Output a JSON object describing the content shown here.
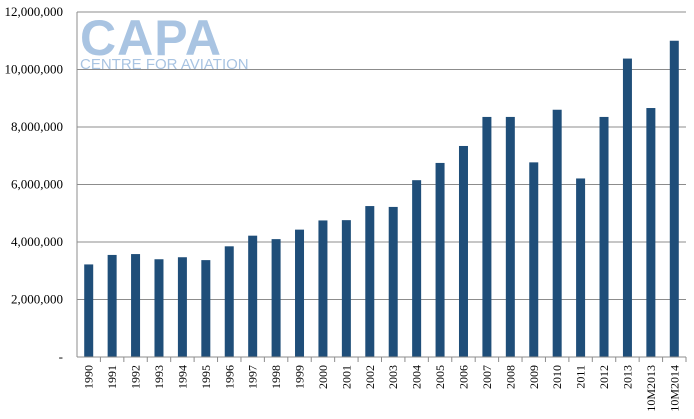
{
  "logo": {
    "main": "CAPA",
    "sub": "CENTRE FOR AVIATION"
  },
  "chart_data": {
    "type": "bar",
    "categories": [
      "1990",
      "1991",
      "1992",
      "1993",
      "1994",
      "1995",
      "1996",
      "1997",
      "1998",
      "1999",
      "2000",
      "2001",
      "2002",
      "2003",
      "2004",
      "2005",
      "2006",
      "2007",
      "2008",
      "2009",
      "2010",
      "2011",
      "2012",
      "2013",
      "10M2013",
      "10M2014"
    ],
    "values": [
      3220000,
      3550000,
      3580000,
      3400000,
      3470000,
      3370000,
      3850000,
      4220000,
      4100000,
      4430000,
      4750000,
      4760000,
      5250000,
      5220000,
      6150000,
      6750000,
      7340000,
      8350000,
      8350000,
      6770000,
      8600000,
      6210000,
      8350000,
      10380000,
      8660000,
      11000000
    ],
    "ylim": [
      0,
      12000000
    ],
    "yticks": [
      0,
      2000000,
      4000000,
      6000000,
      8000000,
      10000000,
      12000000
    ],
    "ytick_labels": [
      "-",
      "2,000,000",
      "4,000,000",
      "6,000,000",
      "8,000,000",
      "10,000,000",
      "12,000,000"
    ],
    "grid": true,
    "bar_color": "#1f4e79",
    "grid_color": "#8c8c8c"
  }
}
